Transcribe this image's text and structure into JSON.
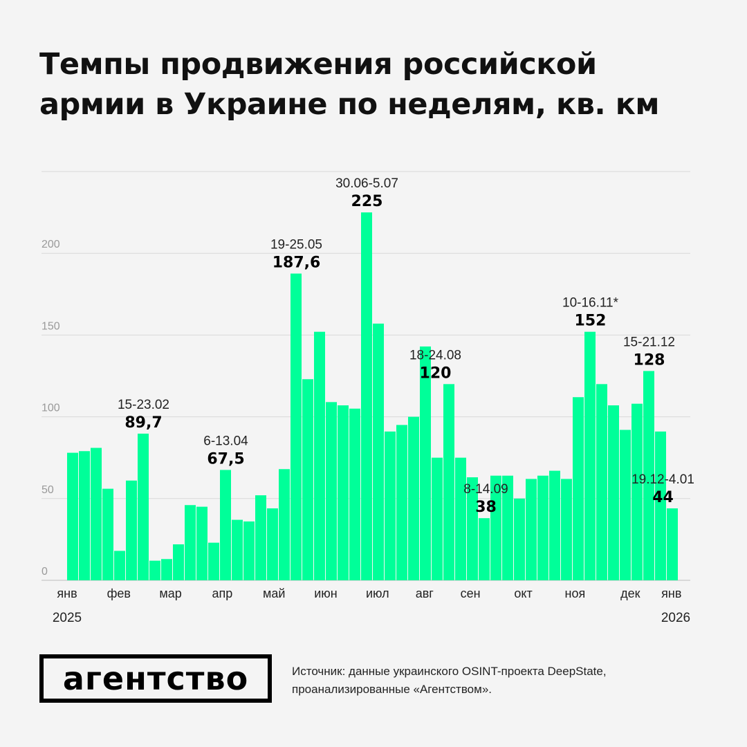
{
  "title": "Темпы продвижения российской армии в Украине по неделям, кв. км",
  "logo_text": "агентство",
  "source_line1": "Источник: данные украинского OSINT-проекта DeepState,",
  "source_line2": "проанализированные «Агентством».",
  "colors": {
    "bar": "#00FF99",
    "background": "#F4F4F4",
    "grid": "#D8D8D8",
    "axis_text": "#999999"
  },
  "chart_data": {
    "type": "bar",
    "title": "Темпы продвижения российской армии в Украине по неделям, кв. км",
    "xlabel": "",
    "ylabel": "",
    "ylim": [
      0,
      250
    ],
    "y_ticks": [
      0,
      50,
      100,
      150,
      200,
      250
    ],
    "y_tick_labels": [
      "0",
      "50",
      "100",
      "150",
      "200",
      ""
    ],
    "grid": true,
    "x_tick_labels": [
      "янв",
      "фев",
      "мар",
      "апр",
      "май",
      "июн",
      "июл",
      "авг",
      "сен",
      "окт",
      "ноя",
      "дек",
      "янв"
    ],
    "year_labels": [
      "2025",
      "2026"
    ],
    "values": [
      78,
      79,
      81,
      56,
      18,
      61,
      89.7,
      12,
      13,
      22,
      46,
      45,
      23,
      67.5,
      37,
      36,
      52,
      44,
      68,
      187.6,
      123,
      152,
      109,
      107,
      105,
      225,
      157,
      91,
      95,
      100,
      143,
      75,
      120,
      75,
      63,
      38,
      64,
      64,
      50,
      62,
      64,
      67,
      62,
      112,
      152,
      120,
      107,
      92,
      108,
      128,
      91,
      44
    ],
    "annotations": [
      {
        "week": 7,
        "date": "15-23.02",
        "value": "89,7"
      },
      {
        "week": 14,
        "date": "6-13.04",
        "value": "67,5"
      },
      {
        "week": 20,
        "date": "19-25.05",
        "value": "187,6"
      },
      {
        "week": 26,
        "date": "30.06-5.07",
        "value": "225"
      },
      {
        "week": 33,
        "date": "18-24.08",
        "value": "120"
      },
      {
        "week": 36,
        "date": "8-14.09",
        "value": "38"
      },
      {
        "week": 45,
        "date": "10-16.11*",
        "value": "152"
      },
      {
        "week": 50,
        "date": "15-21.12",
        "value": "128"
      },
      {
        "week": 52,
        "date": "19.12-4.01",
        "value": "44"
      }
    ]
  }
}
